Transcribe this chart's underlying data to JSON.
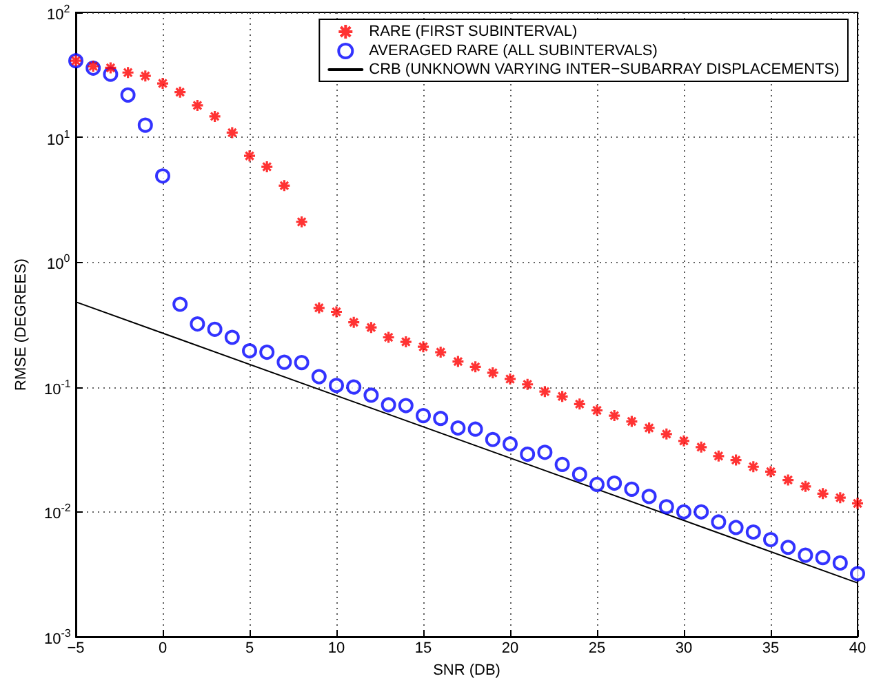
{
  "chart_data": {
    "type": "scatter",
    "xlabel": "SNR (DB)",
    "ylabel": "RMSE (DEGREES)",
    "x": [
      -5,
      -4,
      -3,
      -2,
      -1,
      0,
      1,
      2,
      3,
      4,
      5,
      6,
      7,
      8,
      9,
      10,
      11,
      12,
      13,
      14,
      15,
      16,
      17,
      18,
      19,
      20,
      21,
      22,
      23,
      24,
      25,
      26,
      27,
      28,
      29,
      30,
      31,
      32,
      33,
      34,
      35,
      36,
      37,
      38,
      39,
      40
    ],
    "series": [
      {
        "name": "RARE (FIRST SUBINTERVAL)",
        "color": "#ff0000",
        "marker": "cross",
        "values": [
          41,
          37,
          36,
          33,
          31,
          27,
          23,
          18,
          14.7,
          10.9,
          7.1,
          5.8,
          4.1,
          2.1,
          0.43,
          0.4,
          0.33,
          0.3,
          0.25,
          0.23,
          0.21,
          0.19,
          0.16,
          0.145,
          0.13,
          0.116,
          0.105,
          0.092,
          0.084,
          0.073,
          0.065,
          0.059,
          0.053,
          0.047,
          0.042,
          0.037,
          0.033,
          0.028,
          0.026,
          0.023,
          0.021,
          0.018,
          0.016,
          0.014,
          0.013,
          0.0117
        ]
      },
      {
        "name": "AVERAGED RARE (ALL SUBINTERVALS)",
        "color": "#0000ff",
        "marker": "circle",
        "values": [
          41,
          35.8,
          32,
          21.8,
          12.5,
          4.9,
          0.46,
          0.32,
          0.29,
          0.25,
          0.195,
          0.19,
          0.158,
          0.157,
          0.121,
          0.103,
          0.1,
          0.086,
          0.072,
          0.071,
          0.059,
          0.056,
          0.047,
          0.046,
          0.038,
          0.035,
          0.029,
          0.03,
          0.024,
          0.02,
          0.0166,
          0.017,
          0.0152,
          0.0133,
          0.011,
          0.01,
          0.01,
          0.0083,
          0.0075,
          0.0069,
          0.006,
          0.0052,
          0.0045,
          0.0043,
          0.0039,
          0.0032
        ]
      },
      {
        "name": "CRB (UNKNOWN VARYING INTER−SUBARRAY DISPLACEMENTS)",
        "type": "line",
        "color": "#000000",
        "marker": "none",
        "line_style": "solid",
        "x": [
          -5,
          40
        ],
        "values": [
          0.48,
          0.0027
        ]
      }
    ],
    "xlim": [
      -5,
      40
    ],
    "xticks": [
      {
        "value": -5,
        "label": "−5"
      },
      0,
      5,
      10,
      15,
      20,
      25,
      30,
      35,
      40
    ],
    "ylim": [
      0.001,
      100
    ],
    "log": "y",
    "yticks": [
      {
        "value": 0.001,
        "label": "10$^{-3}$"
      },
      {
        "value": 0.01,
        "label": "10$^{-2}$"
      },
      {
        "value": 0.1,
        "label": "10$^{-1}$"
      },
      {
        "value": 1,
        "label": "10$^{0}$"
      },
      {
        "value": 10,
        "label": "10$^{1}$"
      },
      {
        "value": 100,
        "label": "10$^{2}$"
      }
    ],
    "grid": true,
    "legend": "top right"
  }
}
